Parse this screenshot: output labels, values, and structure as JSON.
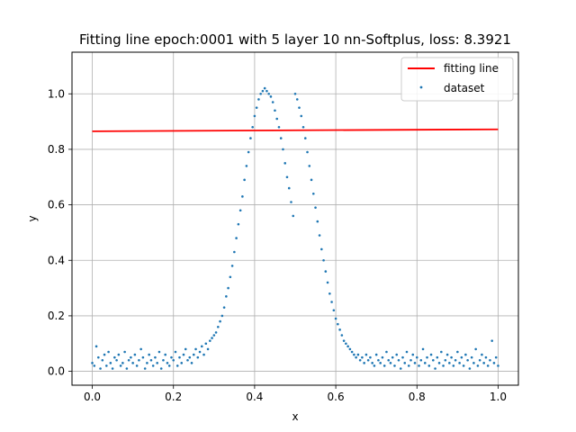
{
  "chart_data": {
    "type": "scatter",
    "title": "Fitting line epoch:0001 with 5 layer 10 nn-Softplus, loss: 8.3921",
    "xlabel": "x",
    "ylabel": "y",
    "xlim": [
      -0.05,
      1.05
    ],
    "ylim": [
      -0.05,
      1.15
    ],
    "xticks": [
      "0.0",
      "0.2",
      "0.4",
      "0.6",
      "0.8",
      "1.0"
    ],
    "yticks": [
      "0.0",
      "0.2",
      "0.4",
      "0.6",
      "0.8",
      "1.0"
    ],
    "grid": true,
    "legend_position": "top-right",
    "colors": {
      "line": "#ff0000",
      "scatter": "#1f77b4"
    },
    "series": [
      {
        "name": "fitting line",
        "kind": "line",
        "x": [
          0.0,
          1.0
        ],
        "y": [
          0.865,
          0.872
        ]
      },
      {
        "name": "dataset",
        "kind": "scatter",
        "x": [
          0.0,
          0.005,
          0.01,
          0.015,
          0.02,
          0.025,
          0.03,
          0.035,
          0.04,
          0.045,
          0.05,
          0.055,
          0.06,
          0.065,
          0.07,
          0.075,
          0.08,
          0.085,
          0.09,
          0.095,
          0.1,
          0.105,
          0.11,
          0.115,
          0.12,
          0.125,
          0.13,
          0.135,
          0.14,
          0.145,
          0.15,
          0.155,
          0.16,
          0.165,
          0.17,
          0.175,
          0.18,
          0.185,
          0.19,
          0.195,
          0.2,
          0.205,
          0.21,
          0.215,
          0.22,
          0.225,
          0.23,
          0.235,
          0.24,
          0.245,
          0.25,
          0.255,
          0.26,
          0.265,
          0.27,
          0.275,
          0.28,
          0.285,
          0.29,
          0.295,
          0.3,
          0.305,
          0.31,
          0.315,
          0.32,
          0.325,
          0.33,
          0.335,
          0.34,
          0.345,
          0.35,
          0.355,
          0.36,
          0.365,
          0.37,
          0.375,
          0.38,
          0.385,
          0.39,
          0.395,
          0.4,
          0.405,
          0.41,
          0.415,
          0.42,
          0.425,
          0.43,
          0.435,
          0.44,
          0.445,
          0.45,
          0.455,
          0.46,
          0.465,
          0.47,
          0.475,
          0.48,
          0.485,
          0.49,
          0.495,
          0.5,
          0.505,
          0.51,
          0.515,
          0.52,
          0.525,
          0.53,
          0.535,
          0.54,
          0.545,
          0.55,
          0.555,
          0.56,
          0.565,
          0.57,
          0.575,
          0.58,
          0.585,
          0.59,
          0.595,
          0.6,
          0.605,
          0.61,
          0.615,
          0.62,
          0.625,
          0.63,
          0.635,
          0.64,
          0.645,
          0.65,
          0.655,
          0.66,
          0.665,
          0.67,
          0.675,
          0.68,
          0.685,
          0.69,
          0.695,
          0.7,
          0.705,
          0.71,
          0.715,
          0.72,
          0.725,
          0.73,
          0.735,
          0.74,
          0.745,
          0.75,
          0.755,
          0.76,
          0.765,
          0.77,
          0.775,
          0.78,
          0.785,
          0.79,
          0.795,
          0.8,
          0.805,
          0.81,
          0.815,
          0.82,
          0.825,
          0.83,
          0.835,
          0.84,
          0.845,
          0.85,
          0.855,
          0.86,
          0.865,
          0.87,
          0.875,
          0.88,
          0.885,
          0.89,
          0.895,
          0.9,
          0.905,
          0.91,
          0.915,
          0.92,
          0.925,
          0.93,
          0.935,
          0.94,
          0.945,
          0.95,
          0.955,
          0.96,
          0.965,
          0.97,
          0.975,
          0.98,
          0.985,
          0.99,
          0.995,
          1.0
        ],
        "y": [
          0.03,
          0.02,
          0.09,
          0.05,
          0.01,
          0.04,
          0.06,
          0.02,
          0.07,
          0.03,
          0.01,
          0.05,
          0.04,
          0.06,
          0.02,
          0.03,
          0.07,
          0.01,
          0.04,
          0.05,
          0.03,
          0.06,
          0.02,
          0.04,
          0.08,
          0.05,
          0.01,
          0.03,
          0.06,
          0.04,
          0.02,
          0.05,
          0.03,
          0.07,
          0.01,
          0.04,
          0.06,
          0.03,
          0.02,
          0.05,
          0.04,
          0.07,
          0.02,
          0.05,
          0.03,
          0.06,
          0.08,
          0.04,
          0.05,
          0.03,
          0.06,
          0.08,
          0.05,
          0.07,
          0.09,
          0.06,
          0.1,
          0.08,
          0.11,
          0.12,
          0.13,
          0.14,
          0.16,
          0.18,
          0.2,
          0.23,
          0.27,
          0.3,
          0.34,
          0.38,
          0.43,
          0.48,
          0.53,
          0.58,
          0.63,
          0.69,
          0.74,
          0.79,
          0.84,
          0.88,
          0.92,
          0.95,
          0.98,
          1.0,
          1.01,
          1.02,
          1.01,
          1.0,
          0.99,
          0.97,
          0.94,
          0.91,
          0.88,
          0.84,
          0.8,
          0.75,
          0.7,
          0.66,
          0.61,
          0.56,
          1.0,
          0.98,
          0.95,
          0.92,
          0.88,
          0.84,
          0.79,
          0.74,
          0.69,
          0.64,
          0.59,
          0.54,
          0.49,
          0.44,
          0.4,
          0.36,
          0.32,
          0.28,
          0.25,
          0.22,
          0.19,
          0.17,
          0.15,
          0.13,
          0.11,
          0.1,
          0.09,
          0.08,
          0.07,
          0.06,
          0.05,
          0.06,
          0.04,
          0.05,
          0.03,
          0.06,
          0.04,
          0.05,
          0.03,
          0.02,
          0.06,
          0.04,
          0.03,
          0.05,
          0.02,
          0.07,
          0.04,
          0.03,
          0.05,
          0.02,
          0.06,
          0.04,
          0.01,
          0.05,
          0.03,
          0.07,
          0.02,
          0.04,
          0.06,
          0.03,
          0.05,
          0.02,
          0.04,
          0.08,
          0.03,
          0.05,
          0.02,
          0.06,
          0.04,
          0.01,
          0.05,
          0.03,
          0.07,
          0.02,
          0.04,
          0.06,
          0.03,
          0.05,
          0.02,
          0.04,
          0.07,
          0.03,
          0.05,
          0.02,
          0.06,
          0.04,
          0.01,
          0.05,
          0.03,
          0.08,
          0.02,
          0.04,
          0.06,
          0.03,
          0.05,
          0.02,
          0.04,
          0.11,
          0.03,
          0.05,
          0.02
        ]
      }
    ]
  }
}
